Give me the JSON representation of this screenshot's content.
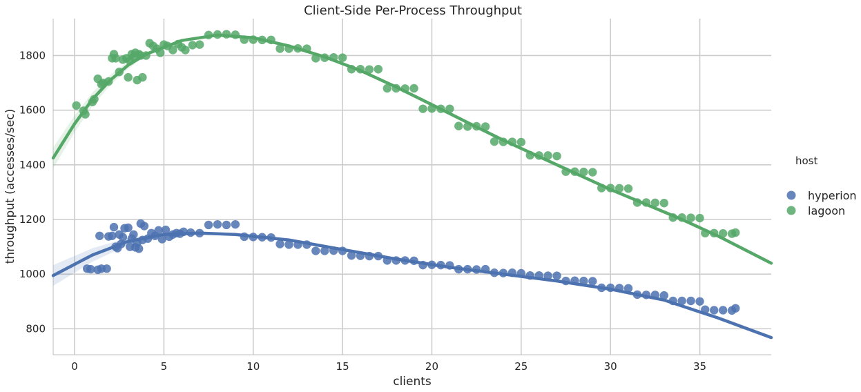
{
  "chart_data": {
    "type": "scatter",
    "title": "Client-Side Per-Process Throughput",
    "xlabel": "clients",
    "ylabel": "throughput (accesses/sec)",
    "xlim": [
      -1.2,
      39
    ],
    "ylim": [
      705,
      1935
    ],
    "xticks": [
      0,
      5,
      10,
      15,
      20,
      25,
      30,
      35
    ],
    "yticks": [
      800,
      1000,
      1200,
      1400,
      1600,
      1800
    ],
    "grid": true,
    "legend": {
      "title": "host",
      "placement": "right"
    },
    "series": [
      {
        "name": "hyperion",
        "color": "#4c72b0",
        "points": [
          [
            0.7,
            1020
          ],
          [
            0.9,
            1018
          ],
          [
            1.3,
            1016
          ],
          [
            1.5,
            1020
          ],
          [
            1.8,
            1020
          ],
          [
            1.4,
            1140
          ],
          [
            1.9,
            1138
          ],
          [
            2.1,
            1140
          ],
          [
            2.2,
            1172
          ],
          [
            2.3,
            1100
          ],
          [
            2.4,
            1095
          ],
          [
            2.5,
            1145
          ],
          [
            2.6,
            1110
          ],
          [
            2.7,
            1135
          ],
          [
            2.8,
            1168
          ],
          [
            3.0,
            1170
          ],
          [
            3.1,
            1100
          ],
          [
            3.2,
            1130
          ],
          [
            3.3,
            1145
          ],
          [
            3.4,
            1098
          ],
          [
            3.5,
            1115
          ],
          [
            3.6,
            1093
          ],
          [
            3.7,
            1185
          ],
          [
            3.8,
            1125
          ],
          [
            3.9,
            1176
          ],
          [
            4.1,
            1130
          ],
          [
            4.3,
            1150
          ],
          [
            4.5,
            1140
          ],
          [
            4.7,
            1160
          ],
          [
            4.9,
            1128
          ],
          [
            5.1,
            1162
          ],
          [
            5.3,
            1137
          ],
          [
            5.5,
            1145
          ],
          [
            5.7,
            1150
          ],
          [
            5.9,
            1148
          ],
          [
            6.1,
            1155
          ],
          [
            6.5,
            1152
          ],
          [
            7.0,
            1150
          ],
          [
            7.5,
            1180
          ],
          [
            8.0,
            1182
          ],
          [
            8.5,
            1180
          ],
          [
            9.0,
            1182
          ],
          [
            9.5,
            1137
          ],
          [
            10.0,
            1136
          ],
          [
            10.5,
            1135
          ],
          [
            11.0,
            1134
          ],
          [
            11.5,
            1110
          ],
          [
            12.0,
            1108
          ],
          [
            12.5,
            1108
          ],
          [
            13.0,
            1108
          ],
          [
            13.5,
            1085
          ],
          [
            14.0,
            1085
          ],
          [
            14.5,
            1086
          ],
          [
            15.0,
            1085
          ],
          [
            15.5,
            1068
          ],
          [
            16.0,
            1067
          ],
          [
            16.5,
            1066
          ],
          [
            17.0,
            1066
          ],
          [
            17.5,
            1050
          ],
          [
            18.0,
            1050
          ],
          [
            18.5,
            1050
          ],
          [
            19.0,
            1049
          ],
          [
            19.5,
            1033
          ],
          [
            20.0,
            1034
          ],
          [
            20.5,
            1033
          ],
          [
            21.0,
            1032
          ],
          [
            21.5,
            1018
          ],
          [
            22.0,
            1018
          ],
          [
            22.5,
            1017
          ],
          [
            23.0,
            1018
          ],
          [
            23.5,
            1005
          ],
          [
            24.0,
            1004
          ],
          [
            24.5,
            1005
          ],
          [
            25.0,
            1003
          ],
          [
            25.5,
            995
          ],
          [
            26.0,
            995
          ],
          [
            26.5,
            994
          ],
          [
            27.0,
            994
          ],
          [
            27.5,
            975
          ],
          [
            28.0,
            976
          ],
          [
            28.5,
            975
          ],
          [
            29.0,
            974
          ],
          [
            29.5,
            950
          ],
          [
            30.0,
            950
          ],
          [
            30.5,
            949
          ],
          [
            31.0,
            948
          ],
          [
            31.5,
            925
          ],
          [
            32.0,
            924
          ],
          [
            32.5,
            924
          ],
          [
            33.0,
            922
          ],
          [
            33.5,
            902
          ],
          [
            34.0,
            902
          ],
          [
            34.5,
            902
          ],
          [
            35.0,
            900
          ],
          [
            35.3,
            870
          ],
          [
            35.8,
            868
          ],
          [
            36.3,
            868
          ],
          [
            36.8,
            867
          ],
          [
            37.0,
            875
          ]
        ],
        "fit": [
          [
            -1.2,
            995
          ],
          [
            1,
            1070
          ],
          [
            3,
            1120
          ],
          [
            5,
            1145
          ],
          [
            7,
            1150
          ],
          [
            9,
            1145
          ],
          [
            12,
            1125
          ],
          [
            15,
            1090
          ],
          [
            18,
            1055
          ],
          [
            21,
            1025
          ],
          [
            24,
            1000
          ],
          [
            27,
            975
          ],
          [
            30,
            945
          ],
          [
            33,
            905
          ],
          [
            36,
            840
          ],
          [
            39,
            768
          ]
        ]
      },
      {
        "name": "lagoon",
        "color": "#55a868",
        "points": [
          [
            0.1,
            1617
          ],
          [
            0.5,
            1598
          ],
          [
            0.6,
            1585
          ],
          [
            1.0,
            1630
          ],
          [
            1.1,
            1640
          ],
          [
            1.3,
            1715
          ],
          [
            1.5,
            1695
          ],
          [
            1.6,
            1700
          ],
          [
            1.9,
            1705
          ],
          [
            2.1,
            1790
          ],
          [
            2.2,
            1805
          ],
          [
            2.3,
            1790
          ],
          [
            2.5,
            1740
          ],
          [
            2.7,
            1785
          ],
          [
            2.9,
            1790
          ],
          [
            3.0,
            1720
          ],
          [
            3.1,
            1780
          ],
          [
            3.2,
            1805
          ],
          [
            3.3,
            1795
          ],
          [
            3.4,
            1810
          ],
          [
            3.5,
            1710
          ],
          [
            3.6,
            1805
          ],
          [
            3.7,
            1800
          ],
          [
            3.8,
            1720
          ],
          [
            4.0,
            1800
          ],
          [
            4.2,
            1845
          ],
          [
            4.4,
            1835
          ],
          [
            4.6,
            1825
          ],
          [
            4.8,
            1810
          ],
          [
            5.0,
            1840
          ],
          [
            5.2,
            1835
          ],
          [
            5.5,
            1820
          ],
          [
            5.8,
            1842
          ],
          [
            6.0,
            1830
          ],
          [
            6.2,
            1820
          ],
          [
            6.6,
            1838
          ],
          [
            7.0,
            1840
          ],
          [
            7.5,
            1875
          ],
          [
            8.0,
            1877
          ],
          [
            8.5,
            1878
          ],
          [
            9.0,
            1876
          ],
          [
            9.5,
            1858
          ],
          [
            10.0,
            1858
          ],
          [
            10.5,
            1857
          ],
          [
            11.0,
            1857
          ],
          [
            11.5,
            1825
          ],
          [
            12.0,
            1825
          ],
          [
            12.5,
            1826
          ],
          [
            13.0,
            1825
          ],
          [
            13.5,
            1790
          ],
          [
            14.0,
            1792
          ],
          [
            14.5,
            1793
          ],
          [
            15.0,
            1792
          ],
          [
            15.5,
            1750
          ],
          [
            16.0,
            1750
          ],
          [
            16.5,
            1749
          ],
          [
            17.0,
            1750
          ],
          [
            17.5,
            1680
          ],
          [
            18.0,
            1680
          ],
          [
            18.5,
            1679
          ],
          [
            19.0,
            1680
          ],
          [
            19.5,
            1605
          ],
          [
            20.0,
            1606
          ],
          [
            20.5,
            1605
          ],
          [
            21.0,
            1605
          ],
          [
            21.5,
            1542
          ],
          [
            22.0,
            1540
          ],
          [
            22.5,
            1541
          ],
          [
            23.0,
            1540
          ],
          [
            23.5,
            1485
          ],
          [
            24.0,
            1484
          ],
          [
            24.5,
            1484
          ],
          [
            25.0,
            1483
          ],
          [
            25.5,
            1435
          ],
          [
            26.0,
            1434
          ],
          [
            26.5,
            1434
          ],
          [
            27.0,
            1432
          ],
          [
            27.5,
            1375
          ],
          [
            28.0,
            1375
          ],
          [
            28.5,
            1374
          ],
          [
            29.0,
            1373
          ],
          [
            29.5,
            1315
          ],
          [
            30.0,
            1315
          ],
          [
            30.5,
            1314
          ],
          [
            31.0,
            1313
          ],
          [
            31.5,
            1262
          ],
          [
            32.0,
            1262
          ],
          [
            32.5,
            1261
          ],
          [
            33.0,
            1260
          ],
          [
            33.5,
            1207
          ],
          [
            34.0,
            1207
          ],
          [
            34.5,
            1206
          ],
          [
            35.0,
            1205
          ],
          [
            35.3,
            1150
          ],
          [
            35.8,
            1150
          ],
          [
            36.3,
            1149
          ],
          [
            36.8,
            1148
          ],
          [
            37.0,
            1152
          ]
        ],
        "fit": [
          [
            -1.2,
            1425
          ],
          [
            0,
            1550
          ],
          [
            1,
            1640
          ],
          [
            2,
            1710
          ],
          [
            3,
            1765
          ],
          [
            4,
            1805
          ],
          [
            6,
            1855
          ],
          [
            8,
            1875
          ],
          [
            10,
            1865
          ],
          [
            12,
            1835
          ],
          [
            14,
            1795
          ],
          [
            16,
            1745
          ],
          [
            18,
            1685
          ],
          [
            20,
            1620
          ],
          [
            22,
            1555
          ],
          [
            24,
            1490
          ],
          [
            26,
            1430
          ],
          [
            28,
            1370
          ],
          [
            30,
            1310
          ],
          [
            32,
            1255
          ],
          [
            34,
            1200
          ],
          [
            36,
            1140
          ],
          [
            39,
            1040
          ]
        ]
      }
    ]
  }
}
